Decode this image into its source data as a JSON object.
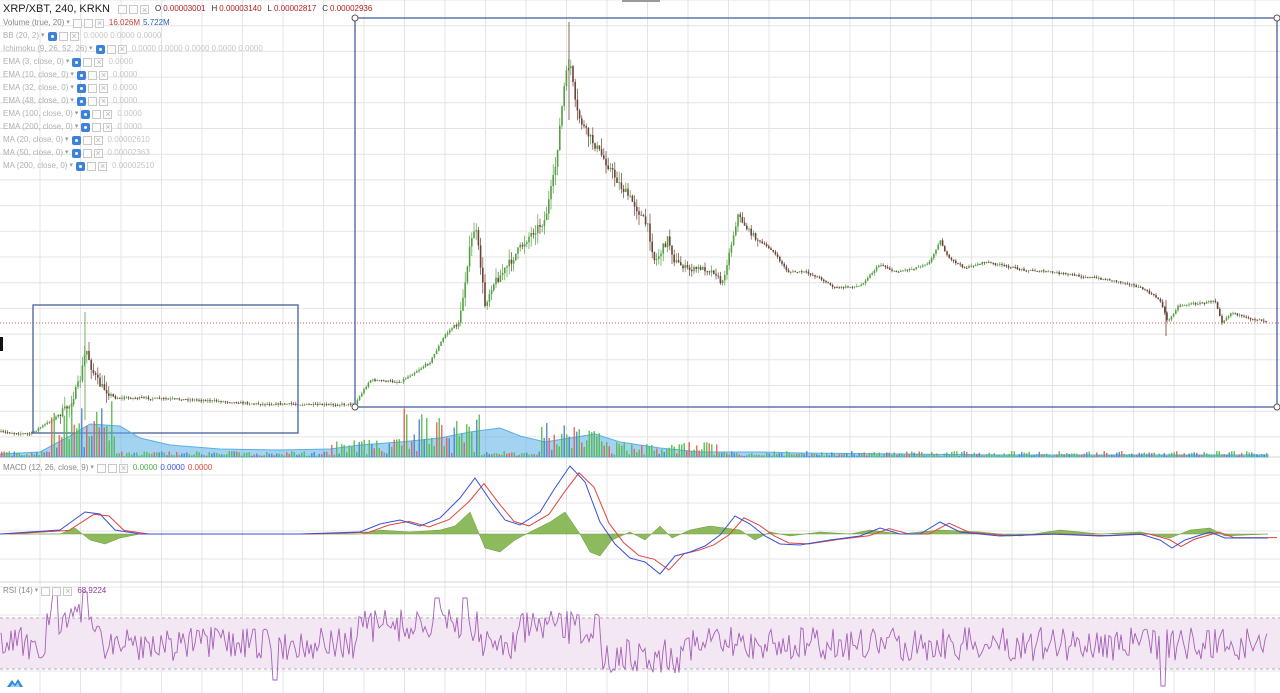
{
  "header": {
    "symbol": "XRP/XBT, 240, KRKN",
    "open_label": "O",
    "open": "0.00003001",
    "high_label": "H",
    "high": "0.00003140",
    "low_label": "L",
    "low": "0.00002817",
    "close_label": "C",
    "close": "0.00002936"
  },
  "volume": {
    "name": "Volume (true, 20)",
    "value1": "16.026M",
    "value2": "5.722M"
  },
  "indicators": [
    {
      "name": "BB (20, 2)",
      "values": "0.0000  0.0000  0.0000"
    },
    {
      "name": "Ichimoku (9, 26, 52, 26)",
      "values": "0.0000  0.0000  0.0000  0.0000  0.0000"
    },
    {
      "name": "EMA (3, close, 0)",
      "values": "0.0000"
    },
    {
      "name": "EMA (10, close, 0)",
      "values": "0.0000"
    },
    {
      "name": "EMA (32, close, 0)",
      "values": "0.0000"
    },
    {
      "name": "EMA (48, close, 0)",
      "values": "0.0000"
    },
    {
      "name": "EMA (100, close, 0)",
      "values": "0.0000"
    },
    {
      "name": "EMA (200, close, 0)",
      "values": "0.0000"
    },
    {
      "name": "MA (20, close, 0)",
      "values": "0.00002610"
    },
    {
      "name": "MA (50, close, 0)",
      "values": "0.00002363"
    },
    {
      "name": "MA (200, close, 0)",
      "values": "0.00002510"
    }
  ],
  "macd": {
    "name": "MACD (12, 26, close, 9)",
    "v1": "0.0000",
    "v2": "0.0000",
    "v3": "0.0000"
  },
  "rsi": {
    "name": "RSI (14)",
    "value": "68.9224"
  },
  "colors": {
    "up": "#53a042",
    "down": "#6b4236",
    "box": "#44609e",
    "volume_ma": "#5aaee8",
    "macd": "#3a4fd6",
    "signal": "#e0453f",
    "hist": "#7fb24a",
    "rsi": "#a560b7",
    "rsi_band": "#f3e7f4",
    "price_line": "#e05050",
    "grid": "#e4e4e4"
  },
  "icons": {
    "eye": "eye-icon",
    "settings": "settings-icon",
    "remove": "close-icon",
    "logo": "tradingview-logo-icon"
  }
}
